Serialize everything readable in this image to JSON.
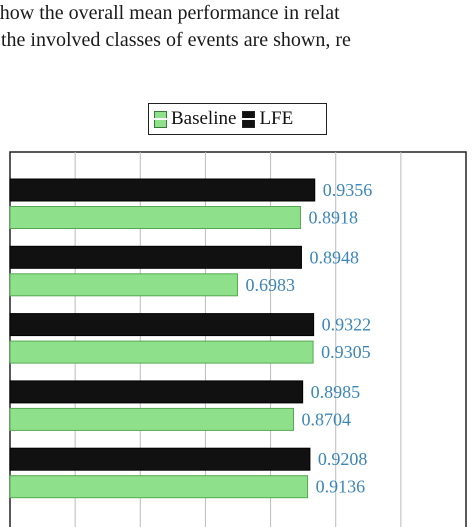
{
  "caption": {
    "line1": "show the overall mean performance in relat",
    "line2": "the involved classes of events are shown, re"
  },
  "legend": {
    "baseline_label": "Baseline",
    "lfe_label": "LFE"
  },
  "colors": {
    "baseline": "#8fe08a",
    "lfe": "#111111",
    "value_label": "#3b86b8",
    "grid": "#bbbbbb"
  },
  "chart_data": {
    "type": "bar",
    "orientation": "horizontal",
    "xlim": [
      0,
      1.4
    ],
    "grid": true,
    "legend_position": "top-center",
    "categories": [
      "",
      "",
      "",
      "",
      ""
    ],
    "series": [
      {
        "name": "LFE",
        "values": [
          0.9356,
          0.8948,
          0.9322,
          0.8985,
          0.9208
        ]
      },
      {
        "name": "Baseline",
        "values": [
          0.8918,
          0.6983,
          0.9305,
          0.8704,
          0.9136
        ]
      }
    ]
  }
}
